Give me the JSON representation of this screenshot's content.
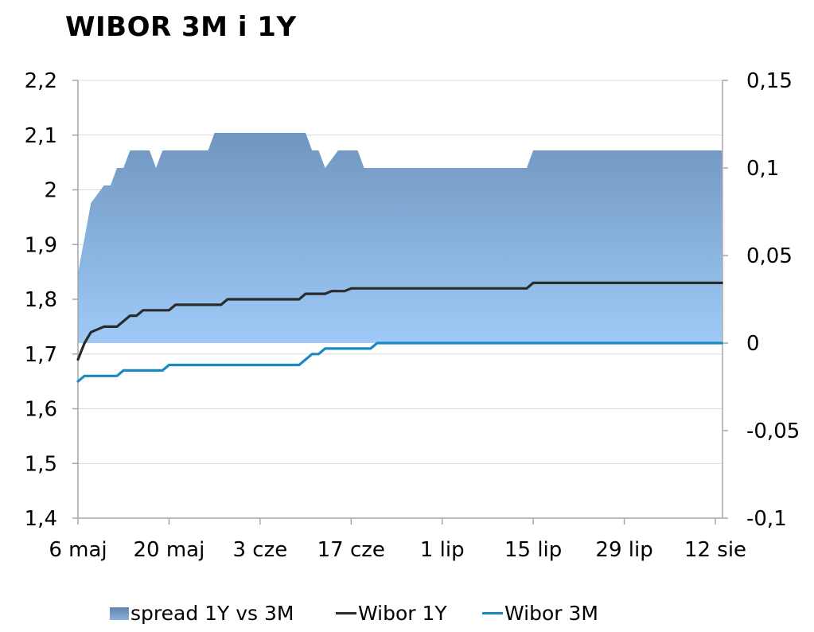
{
  "title": "WIBOR 3M i 1Y",
  "colors": {
    "spread_top": "#6f96bf",
    "spread_bottom": "#9fcaf8",
    "wibor_1y": "#2b2b2b",
    "wibor_3m": "#1a8bc1",
    "grid": "#d9d9d9",
    "axis": "#a6a6a6"
  },
  "legend": [
    {
      "label": "spread 1Y vs 3M",
      "kind": "area"
    },
    {
      "label": "Wibor 1Y",
      "kind": "line"
    },
    {
      "label": "Wibor 3M",
      "kind": "line"
    }
  ],
  "chart_data": {
    "type": "line",
    "title": "WIBOR 3M i 1Y",
    "x_tick_labels": [
      "6 maj",
      "20 maj",
      "3 cze",
      "17 cze",
      "1 lip",
      "15 lip",
      "29 lip",
      "12 sie"
    ],
    "x_tick_dates": [
      "2013-05-06",
      "2013-05-20",
      "2013-06-03",
      "2013-06-17",
      "2013-07-01",
      "2013-07-15",
      "2013-07-29",
      "2013-08-12"
    ],
    "y_left": {
      "min": 1.4,
      "max": 2.2,
      "ticks": [
        "1,4",
        "1,5",
        "1,6",
        "1,7",
        "1,8",
        "1,9",
        "2",
        "2,1",
        "2,2"
      ]
    },
    "y_right": {
      "min": -0.1,
      "max": 0.15,
      "ticks": [
        "-0,1",
        "-0,05",
        "0",
        "0,05",
        "0,1",
        "0,15"
      ]
    },
    "grid": true,
    "legend_position": "bottom",
    "x": [
      "2013-05-06",
      "2013-05-07",
      "2013-05-08",
      "2013-05-09",
      "2013-05-10",
      "2013-05-11",
      "2013-05-12",
      "2013-05-13",
      "2013-05-14",
      "2013-05-15",
      "2013-05-16",
      "2013-05-17",
      "2013-05-18",
      "2013-05-19",
      "2013-05-20",
      "2013-05-21",
      "2013-05-22",
      "2013-05-23",
      "2013-05-24",
      "2013-05-25",
      "2013-05-26",
      "2013-05-27",
      "2013-05-28",
      "2013-05-29",
      "2013-05-30",
      "2013-05-31",
      "2013-06-01",
      "2013-06-02",
      "2013-06-03",
      "2013-06-04",
      "2013-06-05",
      "2013-06-06",
      "2013-06-07",
      "2013-06-08",
      "2013-06-09",
      "2013-06-10",
      "2013-06-11",
      "2013-06-12",
      "2013-06-13",
      "2013-06-14",
      "2013-06-15",
      "2013-06-16",
      "2013-06-17",
      "2013-06-18",
      "2013-06-19",
      "2013-06-20",
      "2013-06-21",
      "2013-06-22",
      "2013-06-23",
      "2013-06-24",
      "2013-06-25",
      "2013-06-26",
      "2013-06-27",
      "2013-06-28",
      "2013-06-29",
      "2013-06-30",
      "2013-07-01",
      "2013-07-02",
      "2013-07-03",
      "2013-07-04",
      "2013-07-05",
      "2013-07-06",
      "2013-07-07",
      "2013-07-08",
      "2013-07-09",
      "2013-07-10",
      "2013-07-11",
      "2013-07-12",
      "2013-07-13",
      "2013-07-14",
      "2013-07-15",
      "2013-07-16",
      "2013-07-17",
      "2013-07-18",
      "2013-07-19",
      "2013-07-20",
      "2013-07-21",
      "2013-07-22",
      "2013-07-23",
      "2013-07-24",
      "2013-07-25",
      "2013-07-26",
      "2013-07-27",
      "2013-07-28",
      "2013-07-29",
      "2013-07-30",
      "2013-07-31",
      "2013-08-01",
      "2013-08-02",
      "2013-08-03",
      "2013-08-04",
      "2013-08-05",
      "2013-08-06",
      "2013-08-07",
      "2013-08-08",
      "2013-08-09",
      "2013-08-10",
      "2013-08-11",
      "2013-08-12",
      "2013-08-13"
    ],
    "series": [
      {
        "name": "Wibor 1Y",
        "axis": "left",
        "values": [
          1.69,
          1.72,
          1.74,
          1.745,
          1.75,
          1.75,
          1.75,
          1.76,
          1.77,
          1.77,
          1.78,
          1.78,
          1.78,
          1.78,
          1.78,
          1.79,
          1.79,
          1.79,
          1.79,
          1.79,
          1.79,
          1.79,
          1.79,
          1.8,
          1.8,
          1.8,
          1.8,
          1.8,
          1.8,
          1.8,
          1.8,
          1.8,
          1.8,
          1.8,
          1.8,
          1.81,
          1.81,
          1.81,
          1.81,
          1.815,
          1.815,
          1.815,
          1.82,
          1.82,
          1.82,
          1.82,
          1.82,
          1.82,
          1.82,
          1.82,
          1.82,
          1.82,
          1.82,
          1.82,
          1.82,
          1.82,
          1.82,
          1.82,
          1.82,
          1.82,
          1.82,
          1.82,
          1.82,
          1.82,
          1.82,
          1.82,
          1.82,
          1.82,
          1.82,
          1.82,
          1.83,
          1.83,
          1.83,
          1.83,
          1.83,
          1.83,
          1.83,
          1.83,
          1.83,
          1.83,
          1.83,
          1.83,
          1.83,
          1.83,
          1.83,
          1.83,
          1.83,
          1.83,
          1.83,
          1.83,
          1.83,
          1.83,
          1.83,
          1.83,
          1.83,
          1.83,
          1.83,
          1.83,
          1.83,
          1.83
        ]
      },
      {
        "name": "Wibor 3M",
        "axis": "left",
        "values": [
          1.65,
          1.66,
          1.66,
          1.66,
          1.66,
          1.66,
          1.66,
          1.67,
          1.67,
          1.67,
          1.67,
          1.67,
          1.67,
          1.67,
          1.68,
          1.68,
          1.68,
          1.68,
          1.68,
          1.68,
          1.68,
          1.68,
          1.68,
          1.68,
          1.68,
          1.68,
          1.68,
          1.68,
          1.68,
          1.68,
          1.68,
          1.68,
          1.68,
          1.68,
          1.68,
          1.69,
          1.7,
          1.7,
          1.71,
          1.71,
          1.71,
          1.71,
          1.71,
          1.71,
          1.71,
          1.71,
          1.72,
          1.72,
          1.72,
          1.72,
          1.72,
          1.72,
          1.72,
          1.72,
          1.72,
          1.72,
          1.72,
          1.72,
          1.72,
          1.72,
          1.72,
          1.72,
          1.72,
          1.72,
          1.72,
          1.72,
          1.72,
          1.72,
          1.72,
          1.72,
          1.72,
          1.72,
          1.72,
          1.72,
          1.72,
          1.72,
          1.72,
          1.72,
          1.72,
          1.72,
          1.72,
          1.72,
          1.72,
          1.72,
          1.72,
          1.72,
          1.72,
          1.72,
          1.72,
          1.72,
          1.72,
          1.72,
          1.72,
          1.72,
          1.72,
          1.72,
          1.72,
          1.72,
          1.72,
          1.72
        ]
      },
      {
        "name": "spread 1Y vs 3M",
        "axis": "right",
        "type": "area",
        "values": [
          0.04,
          0.06,
          0.08,
          0.085,
          0.09,
          0.09,
          0.1,
          0.1,
          0.11,
          0.11,
          0.11,
          0.11,
          0.1,
          0.11,
          0.11,
          0.11,
          0.11,
          0.11,
          0.11,
          0.11,
          0.11,
          0.12,
          0.12,
          0.12,
          0.12,
          0.12,
          0.12,
          0.12,
          0.12,
          0.12,
          0.12,
          0.12,
          0.12,
          0.12,
          0.12,
          0.12,
          0.11,
          0.11,
          0.1,
          0.105,
          0.11,
          0.11,
          0.11,
          0.11,
          0.1,
          0.1,
          0.1,
          0.1,
          0.1,
          0.1,
          0.1,
          0.1,
          0.1,
          0.1,
          0.1,
          0.1,
          0.1,
          0.1,
          0.1,
          0.1,
          0.1,
          0.1,
          0.1,
          0.1,
          0.1,
          0.1,
          0.1,
          0.1,
          0.1,
          0.1,
          0.11,
          0.11,
          0.11,
          0.11,
          0.11,
          0.11,
          0.11,
          0.11,
          0.11,
          0.11,
          0.11,
          0.11,
          0.11,
          0.11,
          0.11,
          0.11,
          0.11,
          0.11,
          0.11,
          0.11,
          0.11,
          0.11,
          0.11,
          0.11,
          0.11,
          0.11,
          0.11,
          0.11,
          0.11,
          0.11
        ]
      }
    ]
  }
}
